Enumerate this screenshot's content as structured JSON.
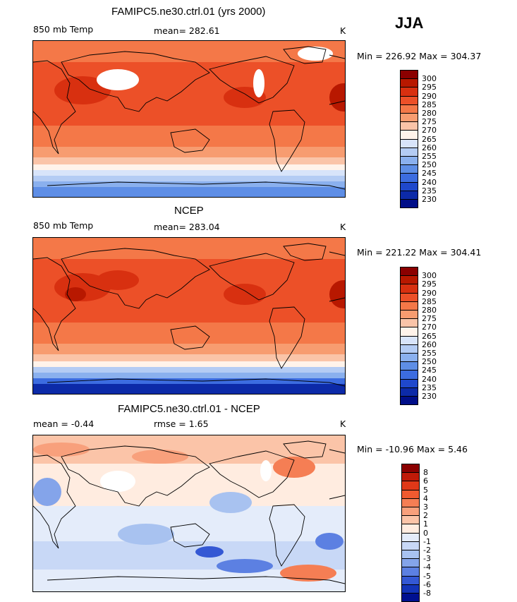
{
  "season": "JJA",
  "chart_data": [
    {
      "type": "heatmap",
      "title": "FAMIPC5.ne30.ctrl.01 (yrs 2000)",
      "variable": "850 mb Temp",
      "stat_text": "mean= 282.61",
      "units": "K",
      "minmax_text": "Min = 226.92 Max = 304.37",
      "min": 226.92,
      "max": 304.37,
      "mean": 282.61,
      "colorbar": {
        "ticks": [
          "300",
          "295",
          "290",
          "285",
          "280",
          "275",
          "270",
          "265",
          "260",
          "255",
          "250",
          "245",
          "240",
          "235",
          "230"
        ],
        "colors": [
          "#8b0000",
          "#b81800",
          "#d83010",
          "#ec5028",
          "#f47848",
          "#f79c70",
          "#fac4a8",
          "#fff3ea",
          "#d8e4fa",
          "#b4ccf4",
          "#8ab0ee",
          "#5e8ee6",
          "#3c6ce0",
          "#1f48cc",
          "#0c2aa8",
          "#000e88"
        ]
      }
    },
    {
      "type": "heatmap",
      "title": "NCEP",
      "variable": "850 mb Temp",
      "stat_text": "mean= 283.04",
      "units": "K",
      "minmax_text": "Min = 221.22 Max = 304.41",
      "min": 221.22,
      "max": 304.41,
      "mean": 283.04,
      "colorbar": {
        "ticks": [
          "300",
          "295",
          "290",
          "285",
          "280",
          "275",
          "270",
          "265",
          "260",
          "255",
          "250",
          "245",
          "240",
          "235",
          "230"
        ],
        "colors": [
          "#8b0000",
          "#b81800",
          "#d83010",
          "#ec5028",
          "#f47848",
          "#f79c70",
          "#fac4a8",
          "#fff3ea",
          "#d8e4fa",
          "#b4ccf4",
          "#8ab0ee",
          "#5e8ee6",
          "#3c6ce0",
          "#1f48cc",
          "#0c2aa8",
          "#000e88"
        ]
      }
    },
    {
      "type": "heatmap",
      "title": "FAMIPC5.ne30.ctrl.01 - NCEP",
      "mean_text": "mean =   -0.44",
      "rmse_text": "rmse =    1.65",
      "units": "K",
      "minmax_text": "Min = -10.96 Max =   5.46",
      "min": -10.96,
      "max": 5.46,
      "mean": -0.44,
      "rmse": 1.65,
      "colorbar": {
        "ticks": [
          "8",
          "6",
          "5",
          "4",
          "3",
          "2",
          "1",
          "0",
          "-1",
          "-2",
          "-3",
          "-4",
          "-5",
          "-6",
          "-8"
        ],
        "colors": [
          "#8b0000",
          "#c01a08",
          "#e03818",
          "#f05a30",
          "#f57e54",
          "#f8a07c",
          "#fbc4a8",
          "#ffece0",
          "#e4ecfa",
          "#c8d8f6",
          "#a8c2f0",
          "#84a4ea",
          "#5c80e2",
          "#3458d4",
          "#1434b8",
          "#001090"
        ]
      }
    }
  ]
}
